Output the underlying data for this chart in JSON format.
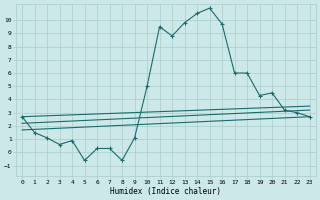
{
  "xlabel": "Humidex (Indice chaleur)",
  "ylabel": "",
  "bg_color": "#cce8e8",
  "grid_color": "#aacccc",
  "line_color": "#1a6b6b",
  "xlim": [
    -0.5,
    23.5
  ],
  "ylim": [
    -1.8,
    11.2
  ],
  "yticks": [
    -1,
    0,
    1,
    2,
    3,
    4,
    5,
    6,
    7,
    8,
    9,
    10
  ],
  "xticks": [
    0,
    1,
    2,
    3,
    4,
    5,
    6,
    7,
    8,
    9,
    10,
    11,
    12,
    13,
    14,
    15,
    16,
    17,
    18,
    19,
    20,
    21,
    22,
    23
  ],
  "line1_x": [
    0,
    1,
    2,
    3,
    4,
    5,
    6,
    7,
    8,
    9,
    10,
    11,
    12,
    13,
    14,
    15,
    16,
    17,
    18,
    19,
    20,
    21,
    22,
    23
  ],
  "line1_y": [
    2.7,
    1.5,
    1.1,
    0.6,
    0.9,
    -0.6,
    0.3,
    0.3,
    -0.6,
    1.1,
    5.0,
    9.5,
    8.8,
    9.8,
    10.5,
    10.9,
    9.7,
    6.0,
    6.0,
    4.3,
    4.5,
    3.2,
    3.0,
    2.7
  ],
  "line2_x": [
    0,
    23
  ],
  "line2_y": [
    2.7,
    3.5
  ],
  "line3_x": [
    0,
    23
  ],
  "line3_y": [
    2.2,
    3.2
  ],
  "line4_x": [
    0,
    23
  ],
  "line4_y": [
    1.7,
    2.7
  ]
}
